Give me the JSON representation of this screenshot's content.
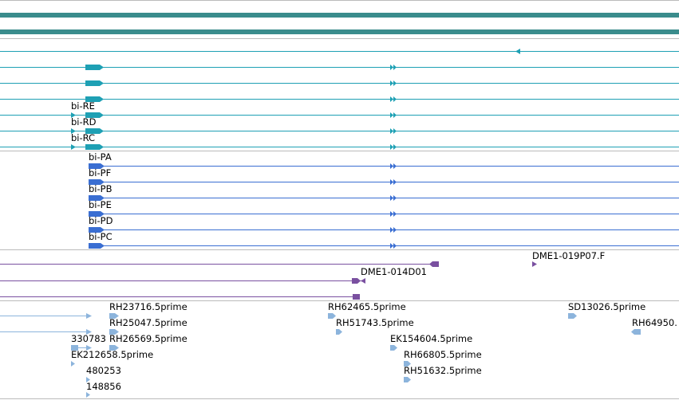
{
  "colors": {
    "gene": "#3a8c8c",
    "transcript": "#1ea0b4",
    "protein": "#3a6ed2",
    "clone": "#7a50a0",
    "est": "#8cb4dc",
    "divider": "#bbbbbb"
  },
  "transcripts": [
    {
      "name": ""
    },
    {
      "name": ""
    },
    {
      "name": ""
    },
    {
      "name": ""
    },
    {
      "name": "bi-RE"
    },
    {
      "name": "bi-RD"
    },
    {
      "name": "bi-RC"
    }
  ],
  "proteins": [
    {
      "name": "bi-PA"
    },
    {
      "name": "bi-PF"
    },
    {
      "name": "bi-PB"
    },
    {
      "name": "bi-PE"
    },
    {
      "name": "bi-PD"
    },
    {
      "name": "bi-PC"
    }
  ],
  "clones": [
    {
      "name": "DME1-019P07.F"
    },
    {
      "name": "DME1-014D01"
    }
  ],
  "ests": [
    {
      "name": "RH23716.5prime"
    },
    {
      "name": "RH25047.5prime"
    },
    {
      "name": "330783"
    },
    {
      "name": "RH26569.5prime"
    },
    {
      "name": "EK212658.5prime"
    },
    {
      "name": "480253"
    },
    {
      "name": "148856"
    },
    {
      "name": "RH62465.5prime"
    },
    {
      "name": "RH51743.5prime"
    },
    {
      "name": "EK154604.5prime"
    },
    {
      "name": "RH66805.5prime"
    },
    {
      "name": "RH51632.5prime"
    },
    {
      "name": "SD13026.5prime"
    },
    {
      "name": "RH64950."
    }
  ]
}
